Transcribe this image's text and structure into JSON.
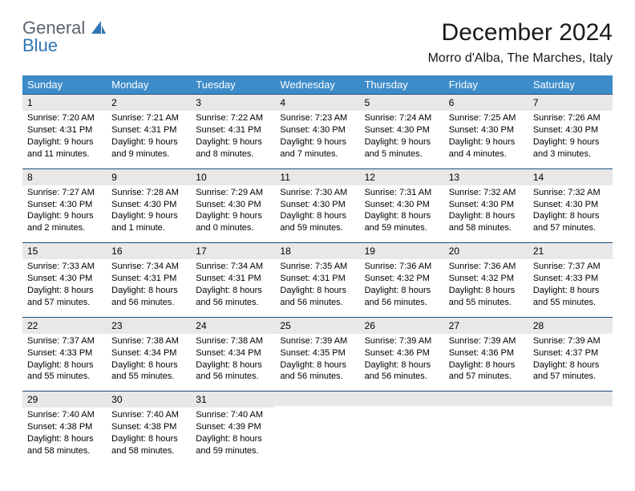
{
  "logo": {
    "line1": "General",
    "line2": "Blue"
  },
  "title": "December 2024",
  "location": "Morro d'Alba, The Marches, Italy",
  "colors": {
    "header_bg": "#3c8cc9",
    "header_text": "#ffffff",
    "daynum_bg": "#e8e8e8",
    "daynum_border": "#1f4e79",
    "logo_gray": "#5c6670",
    "logo_blue": "#2f75b5",
    "page_bg": "#ffffff"
  },
  "weekdays": [
    "Sunday",
    "Monday",
    "Tuesday",
    "Wednesday",
    "Thursday",
    "Friday",
    "Saturday"
  ],
  "weeks": [
    [
      {
        "n": "1",
        "sr": "7:20 AM",
        "ss": "4:31 PM",
        "dl": "9 hours and 11 minutes."
      },
      {
        "n": "2",
        "sr": "7:21 AM",
        "ss": "4:31 PM",
        "dl": "9 hours and 9 minutes."
      },
      {
        "n": "3",
        "sr": "7:22 AM",
        "ss": "4:31 PM",
        "dl": "9 hours and 8 minutes."
      },
      {
        "n": "4",
        "sr": "7:23 AM",
        "ss": "4:30 PM",
        "dl": "9 hours and 7 minutes."
      },
      {
        "n": "5",
        "sr": "7:24 AM",
        "ss": "4:30 PM",
        "dl": "9 hours and 5 minutes."
      },
      {
        "n": "6",
        "sr": "7:25 AM",
        "ss": "4:30 PM",
        "dl": "9 hours and 4 minutes."
      },
      {
        "n": "7",
        "sr": "7:26 AM",
        "ss": "4:30 PM",
        "dl": "9 hours and 3 minutes."
      }
    ],
    [
      {
        "n": "8",
        "sr": "7:27 AM",
        "ss": "4:30 PM",
        "dl": "9 hours and 2 minutes."
      },
      {
        "n": "9",
        "sr": "7:28 AM",
        "ss": "4:30 PM",
        "dl": "9 hours and 1 minute."
      },
      {
        "n": "10",
        "sr": "7:29 AM",
        "ss": "4:30 PM",
        "dl": "9 hours and 0 minutes."
      },
      {
        "n": "11",
        "sr": "7:30 AM",
        "ss": "4:30 PM",
        "dl": "8 hours and 59 minutes."
      },
      {
        "n": "12",
        "sr": "7:31 AM",
        "ss": "4:30 PM",
        "dl": "8 hours and 59 minutes."
      },
      {
        "n": "13",
        "sr": "7:32 AM",
        "ss": "4:30 PM",
        "dl": "8 hours and 58 minutes."
      },
      {
        "n": "14",
        "sr": "7:32 AM",
        "ss": "4:30 PM",
        "dl": "8 hours and 57 minutes."
      }
    ],
    [
      {
        "n": "15",
        "sr": "7:33 AM",
        "ss": "4:30 PM",
        "dl": "8 hours and 57 minutes."
      },
      {
        "n": "16",
        "sr": "7:34 AM",
        "ss": "4:31 PM",
        "dl": "8 hours and 56 minutes."
      },
      {
        "n": "17",
        "sr": "7:34 AM",
        "ss": "4:31 PM",
        "dl": "8 hours and 56 minutes."
      },
      {
        "n": "18",
        "sr": "7:35 AM",
        "ss": "4:31 PM",
        "dl": "8 hours and 56 minutes."
      },
      {
        "n": "19",
        "sr": "7:36 AM",
        "ss": "4:32 PM",
        "dl": "8 hours and 56 minutes."
      },
      {
        "n": "20",
        "sr": "7:36 AM",
        "ss": "4:32 PM",
        "dl": "8 hours and 55 minutes."
      },
      {
        "n": "21",
        "sr": "7:37 AM",
        "ss": "4:33 PM",
        "dl": "8 hours and 55 minutes."
      }
    ],
    [
      {
        "n": "22",
        "sr": "7:37 AM",
        "ss": "4:33 PM",
        "dl": "8 hours and 55 minutes."
      },
      {
        "n": "23",
        "sr": "7:38 AM",
        "ss": "4:34 PM",
        "dl": "8 hours and 55 minutes."
      },
      {
        "n": "24",
        "sr": "7:38 AM",
        "ss": "4:34 PM",
        "dl": "8 hours and 56 minutes."
      },
      {
        "n": "25",
        "sr": "7:39 AM",
        "ss": "4:35 PM",
        "dl": "8 hours and 56 minutes."
      },
      {
        "n": "26",
        "sr": "7:39 AM",
        "ss": "4:36 PM",
        "dl": "8 hours and 56 minutes."
      },
      {
        "n": "27",
        "sr": "7:39 AM",
        "ss": "4:36 PM",
        "dl": "8 hours and 57 minutes."
      },
      {
        "n": "28",
        "sr": "7:39 AM",
        "ss": "4:37 PM",
        "dl": "8 hours and 57 minutes."
      }
    ],
    [
      {
        "n": "29",
        "sr": "7:40 AM",
        "ss": "4:38 PM",
        "dl": "8 hours and 58 minutes."
      },
      {
        "n": "30",
        "sr": "7:40 AM",
        "ss": "4:38 PM",
        "dl": "8 hours and 58 minutes."
      },
      {
        "n": "31",
        "sr": "7:40 AM",
        "ss": "4:39 PM",
        "dl": "8 hours and 59 minutes."
      },
      null,
      null,
      null,
      null
    ]
  ],
  "labels": {
    "sunrise": "Sunrise:",
    "sunset": "Sunset:",
    "daylight": "Daylight:"
  }
}
